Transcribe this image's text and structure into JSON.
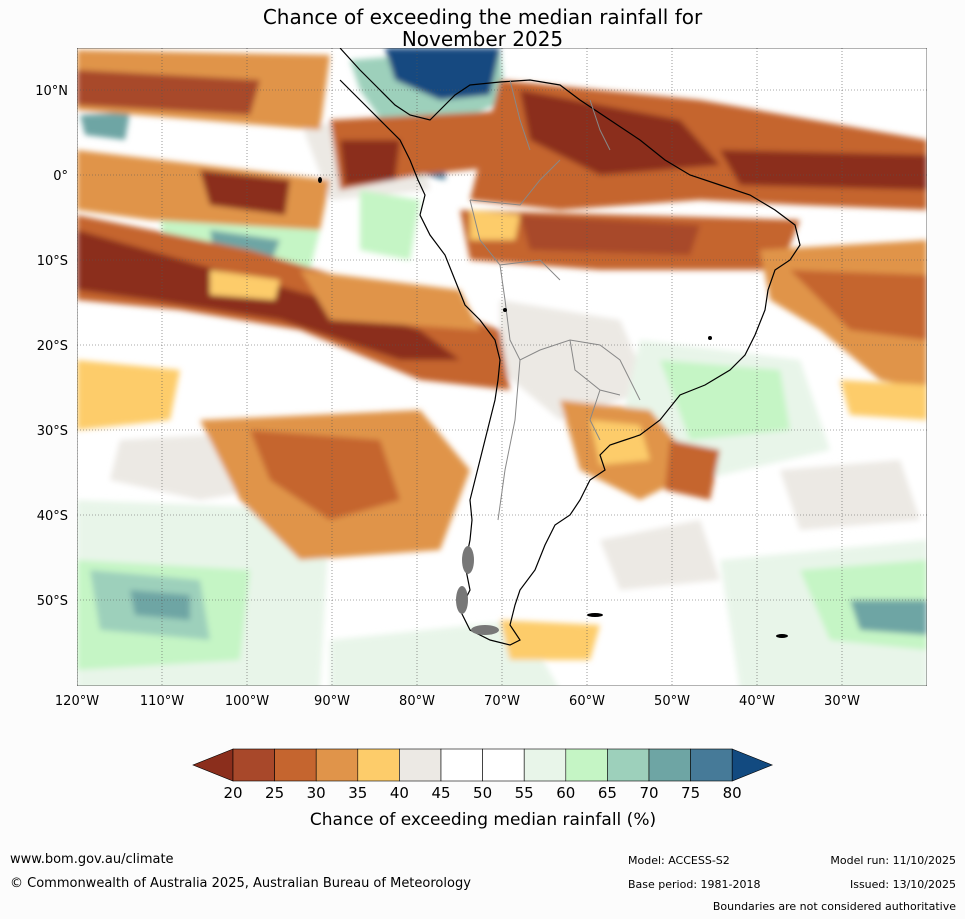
{
  "title": {
    "line1": "Chance of exceeding the median rainfall for",
    "line2": "November 2025"
  },
  "map": {
    "lat_ticks": [
      "10°N",
      "0°",
      "10°S",
      "20°S",
      "30°S",
      "40°S",
      "50°S"
    ],
    "lon_ticks": [
      "120°W",
      "110°W",
      "100°W",
      "90°W",
      "80°W",
      "70°W",
      "60°W",
      "50°W",
      "40°W",
      "30°W"
    ]
  },
  "colorbar": {
    "ticks": [
      "20",
      "25",
      "30",
      "35",
      "40",
      "45",
      "50",
      "55",
      "60",
      "65",
      "70",
      "75",
      "80"
    ],
    "colors": [
      "#8b2e1c",
      "#a8482a",
      "#c5652f",
      "#e0944a",
      "#fdcc6a",
      "#ece9e4",
      "#ffffff",
      "#ffffff",
      "#e8f5e9",
      "#c5f5c5",
      "#9dd0bb",
      "#6ea5a4",
      "#467a98",
      "#124a80"
    ],
    "label": "Chance of exceeding median rainfall (%)"
  },
  "footer": {
    "url": "www.bom.gov.au/climate",
    "copyright": "© Commonwealth of Australia 2025, Australian Bureau of Meteorology",
    "model": "Model: ACCESS-S2",
    "base_period": "Base period: 1981-2018",
    "model_run": "Model run: 11/10/2025",
    "issued": "Issued: 13/10/2025",
    "disclaimer": "Boundaries are not considered authoritative"
  }
}
